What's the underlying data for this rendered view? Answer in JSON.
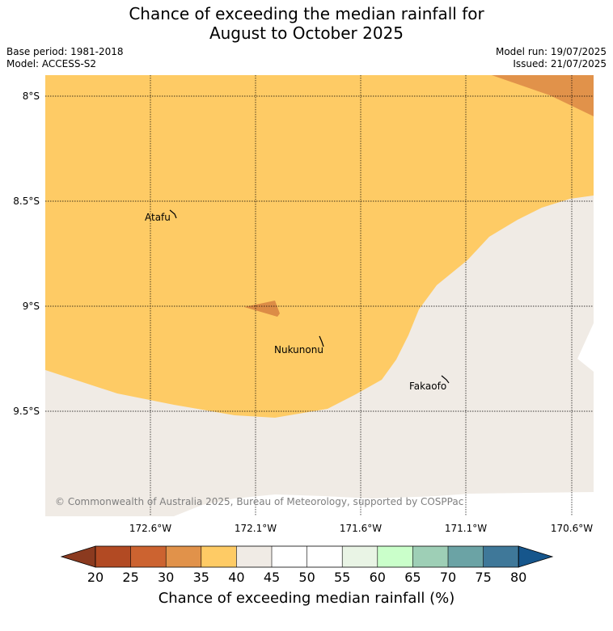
{
  "title": {
    "line1": "Chance of exceeding the median rainfall for",
    "line2": "August to October 2025"
  },
  "meta": {
    "base_period": "Base period: 1981-2018",
    "model": "Model: ACCESS-S2",
    "model_run": "Model run: 19/07/2025",
    "issued": "Issued: 21/07/2025"
  },
  "map": {
    "lat_labels": [
      "8°S",
      "8.5°S",
      "9°S",
      "9.5°S"
    ],
    "lon_labels": [
      "172.6°W",
      "172.1°W",
      "171.6°W",
      "171.1°W",
      "170.6°W"
    ],
    "places": [
      {
        "name": "Atafu",
        "lat": -8.56,
        "lon": -172.51
      },
      {
        "name": "Nukunonu",
        "lat": -9.19,
        "lon": -171.83
      },
      {
        "name": "Fakaofo",
        "lat": -9.36,
        "lon": -171.22
      }
    ],
    "copyright": "© Commonwealth of Australia 2025, Bureau of Meteorology, supported by COSPPac",
    "colors": {
      "land_default": "#f0ebe5",
      "band_35_40": "#fecb65",
      "band_30_35": "#e1924a"
    }
  },
  "colorbar": {
    "ticks": [
      "20",
      "25",
      "30",
      "35",
      "40",
      "45",
      "50",
      "55",
      "60",
      "65",
      "70",
      "75",
      "80"
    ],
    "colors": [
      "#8b3a1f",
      "#b24a23",
      "#cc6330",
      "#e1924a",
      "#fecb65",
      "#f0ebe5",
      "#ffffff",
      "#ffffff",
      "#e9f4e5",
      "#caffca",
      "#9ecfb6",
      "#6ba3a5",
      "#3f7899",
      "#16568c"
    ],
    "label": "Chance of exceeding median rainfall (%)"
  }
}
